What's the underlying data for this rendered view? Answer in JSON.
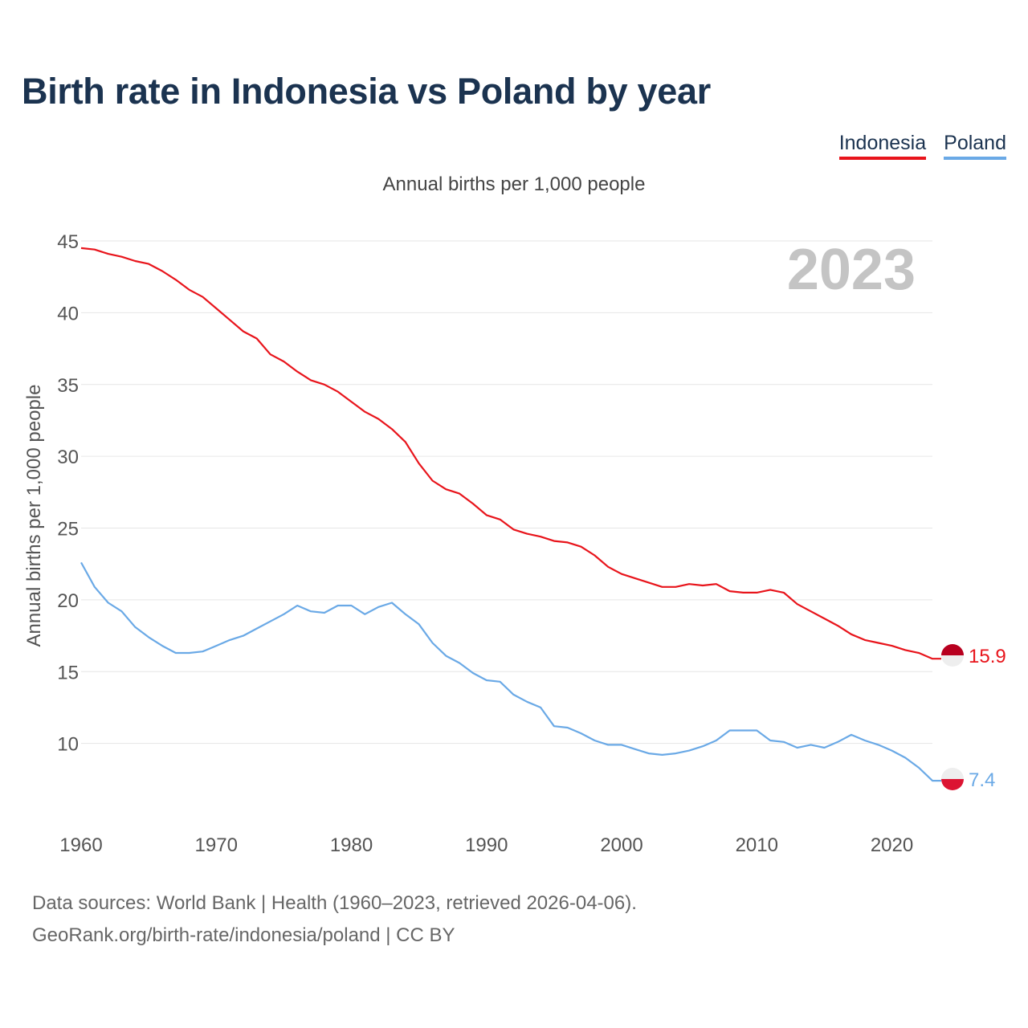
{
  "title": "Birth rate in Indonesia vs Poland by year",
  "subtitle": "Annual births per 1,000 people",
  "legend": [
    {
      "label": "Indonesia",
      "color": "#e8141b"
    },
    {
      "label": "Poland",
      "color": "#6aa9e6"
    }
  ],
  "footer": {
    "line1": "Data sources: World Bank | Health (1960–2023, retrieved 2026-04-06).",
    "line2": "GeoRank.org/birth-rate/indonesia/poland | CC BY"
  },
  "chart_data": {
    "type": "line",
    "title": "Birth rate in Indonesia vs Poland by year",
    "ylabel": "Annual births per 1,000 people",
    "xlabel": "",
    "watermark_year": "2023",
    "xlim": [
      1960,
      2023
    ],
    "ylim": [
      5,
      45
    ],
    "x_ticks": [
      1960,
      1970,
      1980,
      1990,
      2000,
      2010,
      2020
    ],
    "y_ticks": [
      10,
      15,
      20,
      25,
      30,
      35,
      40,
      45
    ],
    "grid": true,
    "x": [
      1960,
      1961,
      1962,
      1963,
      1964,
      1965,
      1966,
      1967,
      1968,
      1969,
      1970,
      1971,
      1972,
      1973,
      1974,
      1975,
      1976,
      1977,
      1978,
      1979,
      1980,
      1981,
      1982,
      1983,
      1984,
      1985,
      1986,
      1987,
      1988,
      1989,
      1990,
      1991,
      1992,
      1993,
      1994,
      1995,
      1996,
      1997,
      1998,
      1999,
      2000,
      2001,
      2002,
      2003,
      2004,
      2005,
      2006,
      2007,
      2008,
      2009,
      2010,
      2011,
      2012,
      2013,
      2014,
      2015,
      2016,
      2017,
      2018,
      2019,
      2020,
      2021,
      2022,
      2023
    ],
    "series": [
      {
        "name": "Indonesia",
        "color": "#e8141b",
        "end_label": "15.9",
        "values": [
          44.5,
          44.4,
          44.1,
          43.9,
          43.6,
          43.4,
          42.9,
          42.3,
          41.6,
          41.1,
          40.3,
          39.5,
          38.7,
          38.2,
          37.1,
          36.6,
          35.9,
          35.3,
          35.0,
          34.5,
          33.8,
          33.1,
          32.6,
          31.9,
          31.0,
          29.5,
          28.3,
          27.7,
          27.4,
          26.7,
          25.9,
          25.6,
          24.9,
          24.6,
          24.4,
          24.1,
          24.0,
          23.7,
          23.1,
          22.3,
          21.8,
          21.5,
          21.2,
          20.9,
          20.9,
          21.1,
          21.0,
          21.1,
          20.6,
          20.5,
          20.5,
          20.7,
          20.5,
          19.7,
          19.2,
          18.7,
          18.2,
          17.6,
          17.2,
          17.0,
          16.8,
          16.5,
          16.3,
          15.9
        ]
      },
      {
        "name": "Poland",
        "color": "#6aa9e6",
        "end_label": "7.4",
        "values": [
          22.6,
          20.9,
          19.8,
          19.2,
          18.1,
          17.4,
          16.8,
          16.3,
          16.3,
          16.4,
          16.8,
          17.2,
          17.5,
          18.0,
          18.5,
          19.0,
          19.6,
          19.2,
          19.1,
          19.6,
          19.6,
          19.0,
          19.5,
          19.8,
          19.0,
          18.3,
          17.0,
          16.1,
          15.6,
          14.9,
          14.4,
          14.3,
          13.4,
          12.9,
          12.5,
          11.2,
          11.1,
          10.7,
          10.2,
          9.9,
          9.9,
          9.6,
          9.3,
          9.2,
          9.3,
          9.5,
          9.8,
          10.2,
          10.9,
          10.9,
          10.9,
          10.2,
          10.1,
          9.7,
          9.9,
          9.7,
          10.1,
          10.6,
          10.2,
          9.9,
          9.5,
          9.0,
          8.3,
          7.4
        ]
      }
    ]
  }
}
